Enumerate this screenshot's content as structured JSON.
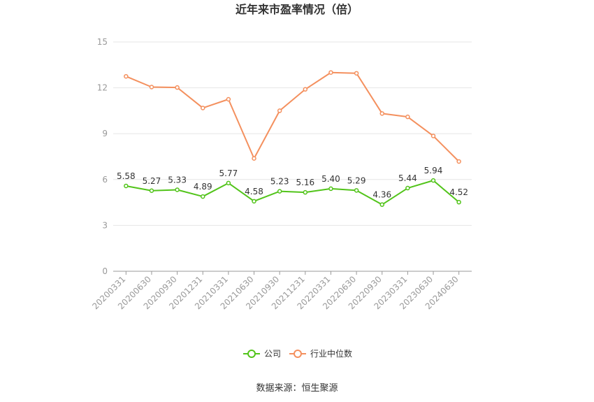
{
  "chart_data": {
    "type": "line",
    "title": "近年来市盈率情况（倍）",
    "source": "数据来源：恒生聚源",
    "x": [
      "20200331",
      "20200630",
      "20200930",
      "20201231",
      "20210331",
      "20210630",
      "20210930",
      "20211231",
      "20220331",
      "20220630",
      "20220930",
      "20230331",
      "20230630",
      "20240630"
    ],
    "yticks": [
      "0",
      "3",
      "6",
      "9",
      "12",
      "15"
    ],
    "ylim": [
      0,
      15
    ],
    "grid": true,
    "legend_position": "bottom",
    "series": [
      {
        "name": "公司",
        "color": "#52c41a",
        "values": [
          5.58,
          5.27,
          5.33,
          4.89,
          5.77,
          4.58,
          5.23,
          5.16,
          5.4,
          5.29,
          4.36,
          5.44,
          5.94,
          4.52
        ],
        "labels": [
          "5.58",
          "5.27",
          "5.33",
          "4.89",
          "5.77",
          "4.58",
          "5.23",
          "5.16",
          "5.40",
          "5.29",
          "4.36",
          "5.44",
          "5.94",
          "4.52"
        ]
      },
      {
        "name": "行业中位数",
        "color": "#f4905e",
        "values": [
          12.75,
          12.05,
          12.02,
          10.68,
          11.25,
          7.38,
          10.5,
          11.9,
          13.0,
          12.95,
          10.32,
          10.1,
          8.85,
          7.18
        ]
      }
    ]
  }
}
